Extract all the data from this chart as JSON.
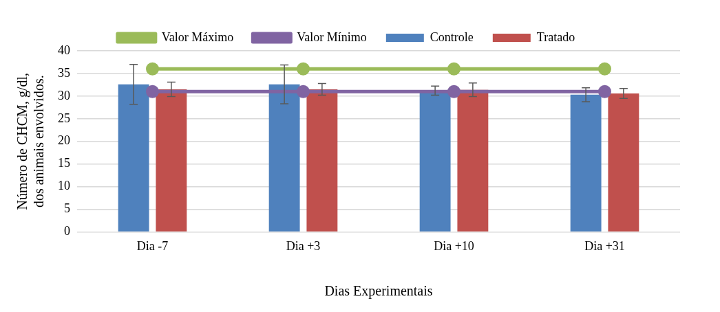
{
  "chart_data": {
    "type": "bar",
    "xlabel": "Dias Experimentais",
    "ylabel": "Número de CHCM, g/dl, dos animais envolvidos.",
    "categories": [
      "Dia -7",
      "Dia +3",
      "Dia +10",
      "Dia +31"
    ],
    "ylim": [
      0,
      40
    ],
    "yticks": [
      0,
      5,
      10,
      15,
      20,
      25,
      30,
      35,
      40
    ],
    "grid": "y",
    "legend": "top",
    "series": [
      {
        "name": "Controle",
        "color": "#4f81bd",
        "values": [
          32.6,
          32.6,
          31.2,
          30.3
        ],
        "errors": [
          4.4,
          4.3,
          1.0,
          1.55
        ]
      },
      {
        "name": "Tratado",
        "color": "#c0504d",
        "values": [
          31.5,
          31.5,
          31.4,
          30.6
        ],
        "errors": [
          1.6,
          1.3,
          1.5,
          1.1
        ]
      },
      {
        "name": "Valor Máximo",
        "type": "line",
        "color": "#9bbb59",
        "marker": "circle",
        "values": [
          36,
          36,
          36,
          36
        ]
      },
      {
        "name": "Valor Mínimo",
        "type": "line",
        "color": "#8064a2",
        "marker": "circle",
        "values": [
          31,
          31,
          31,
          31
        ]
      }
    ]
  }
}
